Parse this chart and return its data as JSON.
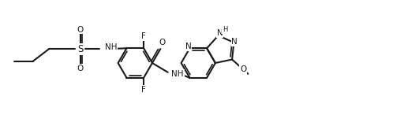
{
  "bg": "#ffffff",
  "lc": "#1a1a1a",
  "lw": 1.5,
  "fs": 7.5,
  "xlim": [
    0,
    10.8
  ],
  "ylim": [
    0.2,
    3.6
  ]
}
